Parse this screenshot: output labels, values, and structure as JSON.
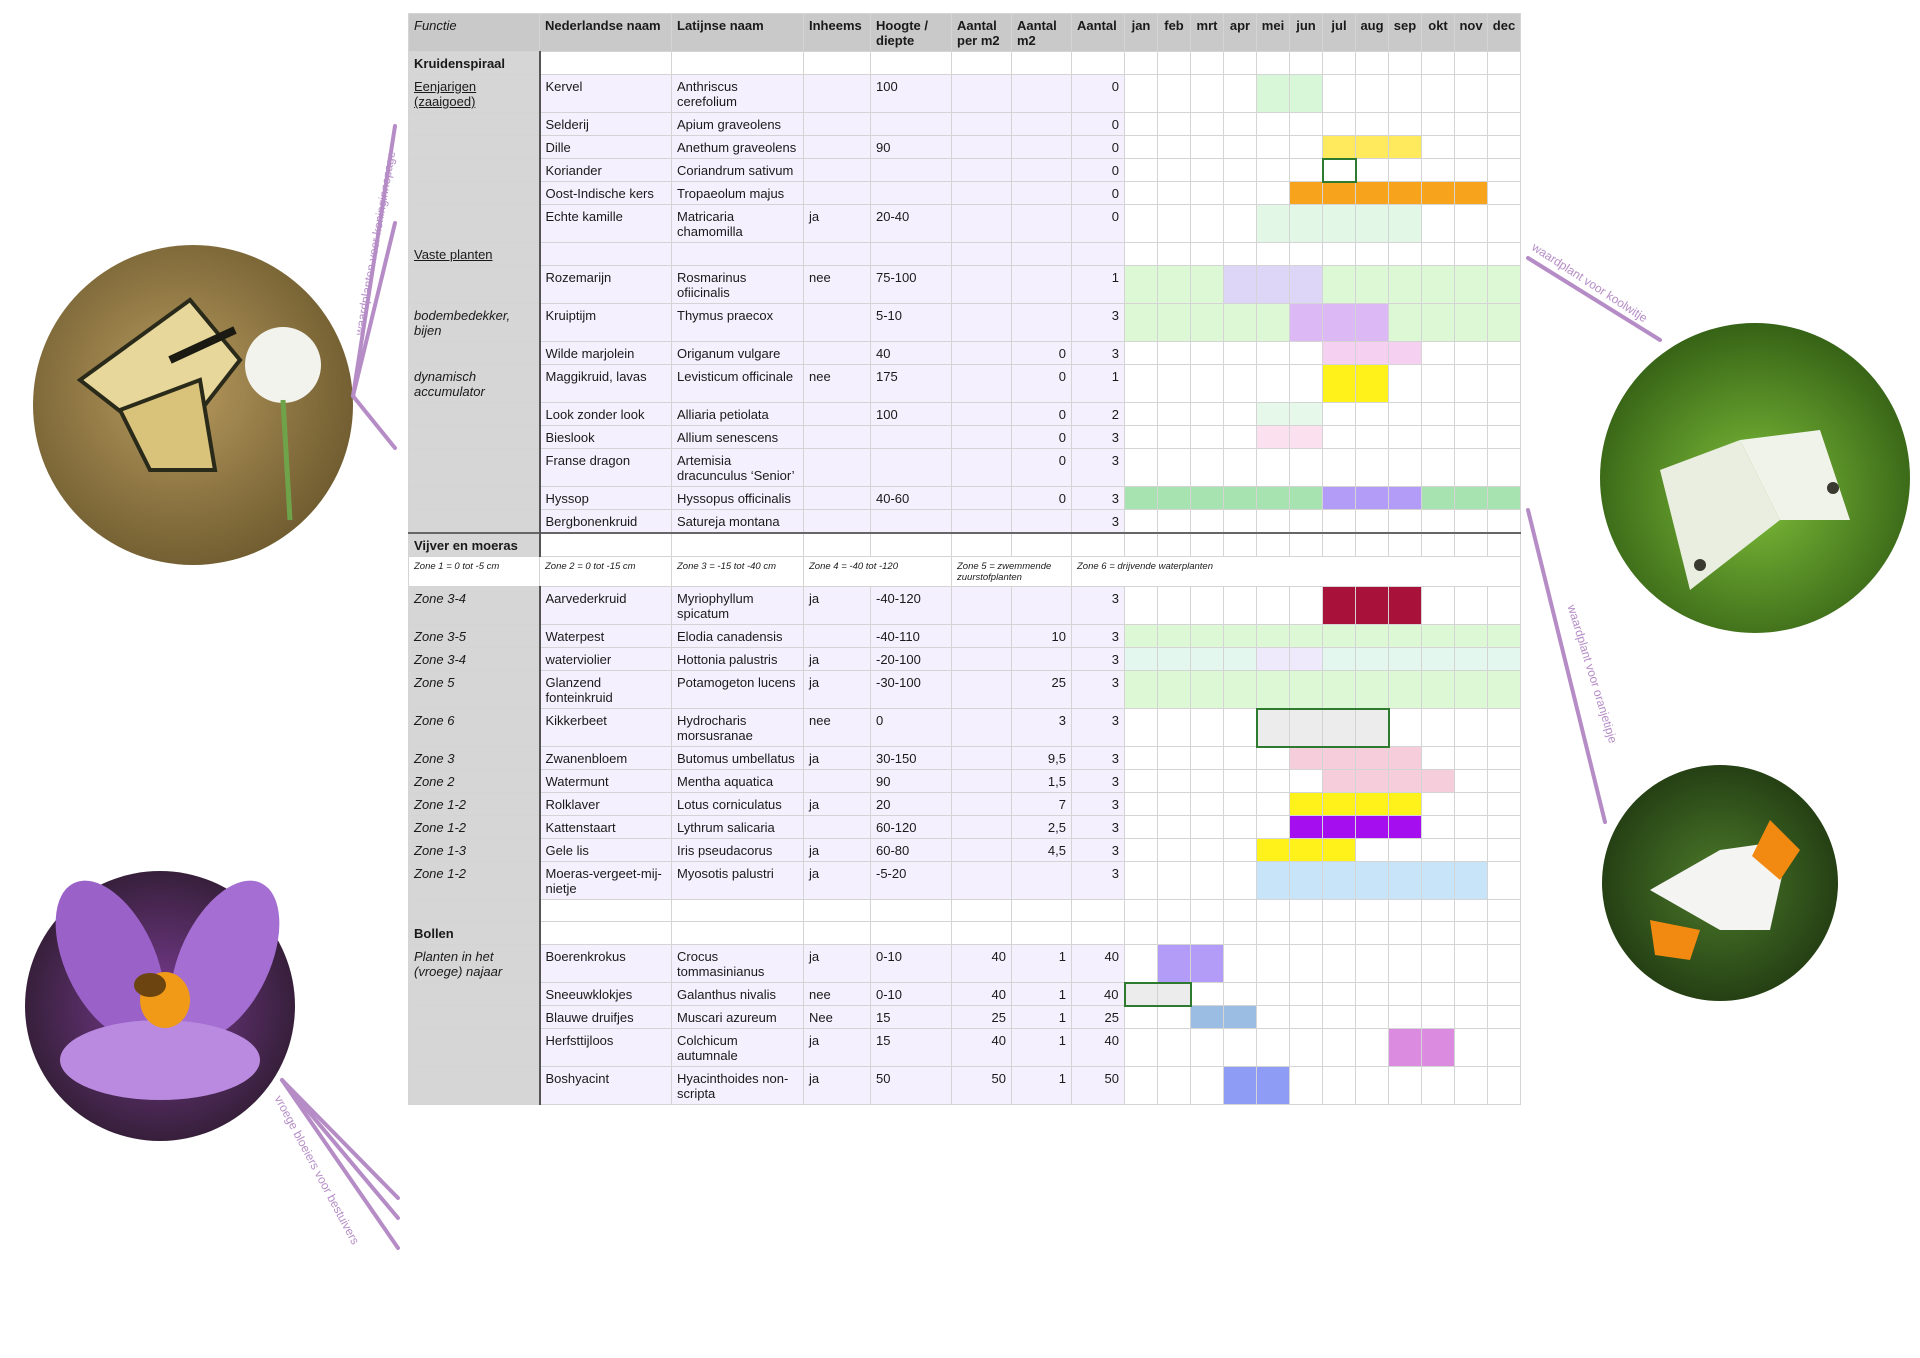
{
  "header": {
    "functie": "Functie",
    "ned": "Nederlandse naam",
    "lat": "Latijnse naam",
    "inheems": "Inheems",
    "hoogte": "Hoogte / diepte",
    "per_m2": "Aantal per m2",
    "m2": "Aantal m2",
    "aantal": "Aantal",
    "months": [
      "jan",
      "feb",
      "mrt",
      "apr",
      "mei",
      "jun",
      "jul",
      "aug",
      "sep",
      "okt",
      "nov",
      "dec"
    ]
  },
  "rows": [
    {
      "kind": "section",
      "c0": "Kruidenspiraal"
    },
    {
      "c0": "Eenjarigen (zaaigoed)",
      "c0s": "u",
      "ned": "Kervel",
      "lat": "Anthriscus cerefolium",
      "inh": "",
      "h": "100",
      "pm": "",
      "m2": "",
      "n": "0",
      "p": [
        [
          5,
          6,
          "#d8f6d8"
        ]
      ]
    },
    {
      "c0": "",
      "ned": "Selderij",
      "lat": "Apium graveolens",
      "inh": "",
      "h": "",
      "pm": "",
      "m2": "",
      "n": "0",
      "p": []
    },
    {
      "c0": "",
      "ned": "Dille",
      "lat": "Anethum graveolens",
      "inh": "",
      "h": "90",
      "pm": "",
      "m2": "",
      "n": "0",
      "p": [
        [
          7,
          9,
          "#ffe95c"
        ]
      ]
    },
    {
      "c0": "",
      "ned": "Koriander",
      "lat": "Coriandrum sativum",
      "inh": "",
      "h": "",
      "pm": "",
      "m2": "",
      "n": "0",
      "p": [],
      "o": [
        [
          7,
          7
        ]
      ]
    },
    {
      "c0": "",
      "ned": "Oost-Indische kers",
      "lat": "Tropaeolum majus",
      "inh": "",
      "h": "",
      "pm": "",
      "m2": "",
      "n": "0",
      "p": [
        [
          6,
          11,
          "#f7a31c"
        ]
      ]
    },
    {
      "c0": "",
      "ned": "Echte kamille",
      "lat": "Matricaria chamomilla",
      "inh": "ja",
      "h": "20-40",
      "pm": "",
      "m2": "",
      "n": "0",
      "p": [
        [
          5,
          9,
          "#e3f7e6"
        ]
      ]
    },
    {
      "c0": "Vaste planten",
      "c0s": "u",
      "ned": "",
      "lat": "",
      "inh": "",
      "h": "",
      "pm": "",
      "m2": "",
      "n": "",
      "p": []
    },
    {
      "c0": "",
      "ned": "Rozemarijn",
      "lat": "Rosmarinus ofiicinalis",
      "inh": "nee",
      "h": "75-100",
      "pm": "",
      "m2": "",
      "n": "1",
      "p": [
        [
          1,
          3,
          "#dcf8d4"
        ],
        [
          4,
          5,
          "#ddd6f7"
        ],
        [
          6,
          6,
          "#ddd6f7"
        ],
        [
          7,
          12,
          "#dcf8d4"
        ]
      ]
    },
    {
      "c0": "bodembedekker, bijen",
      "c0s": "i",
      "ned": "Kruiptijm",
      "lat": "Thymus praecox",
      "inh": "",
      "h": "5-10",
      "pm": "",
      "m2": "",
      "n": "3",
      "p": [
        [
          1,
          5,
          "#dcf8d4"
        ],
        [
          6,
          8,
          "#dcb8f5"
        ],
        [
          9,
          12,
          "#dcf8d4"
        ]
      ]
    },
    {
      "c0": "",
      "ned": "Wilde marjolein",
      "lat": "Origanum vulgare",
      "inh": "",
      "h": "40",
      "pm": "",
      "m2": "0",
      "n": "3",
      "p": [
        [
          7,
          9,
          "#f6d0f0"
        ]
      ]
    },
    {
      "c0": "dynamisch accumulator",
      "c0s": "i",
      "ned": "Maggikruid, lavas",
      "lat": "Levisticum officinale",
      "inh": "nee",
      "h": "175",
      "pm": "",
      "m2": "0",
      "n": "1",
      "p": [
        [
          7,
          8,
          "#fff21a"
        ]
      ]
    },
    {
      "c0": "",
      "ned": "Look zonder look",
      "lat": "Alliaria petiolata",
      "inh": "",
      "h": "100",
      "pm": "",
      "m2": "0",
      "n": "2",
      "p": [
        [
          5,
          6,
          "#e6f8ea"
        ]
      ]
    },
    {
      "c0": "",
      "ned": "Bieslook",
      "lat": "Allium senescens",
      "inh": "",
      "h": "",
      "pm": "",
      "m2": "0",
      "n": "3",
      "p": [
        [
          5,
          6,
          "#fbe0f0"
        ]
      ]
    },
    {
      "c0": "",
      "ned": "Franse dragon",
      "lat": "Artemisia dracunculus ‘Senior’",
      "inh": "",
      "h": "",
      "pm": "",
      "m2": "0",
      "n": "3",
      "p": []
    },
    {
      "c0": "",
      "ned": "Hyssop",
      "lat": "Hyssopus officinalis",
      "inh": "",
      "h": "40-60",
      "pm": "",
      "m2": "0",
      "n": "3",
      "p": [
        [
          1,
          6,
          "#a6e3b1"
        ],
        [
          7,
          9,
          "#b39cf7"
        ],
        [
          10,
          12,
          "#a6e3b1"
        ]
      ]
    },
    {
      "c0": "",
      "ned": "Bergbonenkruid",
      "lat": "Satureja montana",
      "inh": "",
      "h": "",
      "pm": "",
      "m2": "",
      "n": "3",
      "p": []
    },
    {
      "kind": "section",
      "c0": "Vijver en moeras",
      "topb": true
    },
    {
      "kind": "zone",
      "z": [
        "Zone 1 = 0 tot -5 cm",
        "Zone 2 = 0 tot -15 cm",
        "Zone 3 = -15 tot -40 cm",
        "Zone 4 = -40 tot -120",
        "Zone 5 = zwemmende zuurstofplanten",
        "Zone 6 = drijvende waterplanten"
      ]
    },
    {
      "c0": "Zone 3-4",
      "c0s": "i",
      "ned": "Aarvederkruid",
      "lat": "Myriophyllum spicatum",
      "inh": "ja",
      "h": "-40-120",
      "pm": "",
      "m2": "",
      "n": "3",
      "p": [
        [
          7,
          9,
          "#a8123a"
        ]
      ]
    },
    {
      "c0": "Zone 3-5",
      "c0s": "i",
      "ned": "Waterpest",
      "lat": "Elodia canadensis",
      "inh": "",
      "h": "-40-110",
      "pm": "",
      "m2": "10",
      "n": "3",
      "p": [
        [
          1,
          12,
          "#dcf8d4"
        ]
      ]
    },
    {
      "c0": "Zone 3-4",
      "c0s": "i",
      "ned": "waterviolier",
      "lat": "Hottonia palustris",
      "inh": "ja",
      "h": "-20-100",
      "pm": "",
      "m2": "",
      "n": "3",
      "p": [
        [
          1,
          4,
          "#e3f7ee"
        ],
        [
          5,
          6,
          "#eeeafc"
        ],
        [
          7,
          12,
          "#e3f7ee"
        ]
      ]
    },
    {
      "c0": "Zone 5",
      "c0s": "i",
      "ned": "Glanzend fonteinkruid",
      "lat": "Potamogeton lucens",
      "inh": "ja",
      "h": "-30-100",
      "pm": "",
      "m2": "25",
      "n": "3",
      "p": [
        [
          1,
          12,
          "#dcf8d4"
        ]
      ]
    },
    {
      "c0": "Zone 6",
      "c0s": "i",
      "ned": "Kikkerbeet",
      "lat": "Hydrocharis morsusranae",
      "inh": "nee",
      "h": "0",
      "pm": "",
      "m2": "3",
      "n": "3",
      "p": [
        [
          5,
          8,
          "#ececec"
        ]
      ],
      "o": [
        [
          5,
          8
        ]
      ]
    },
    {
      "c0": "Zone 3",
      "c0s": "i",
      "ned": "Zwanenbloem",
      "lat": "Butomus umbellatus",
      "inh": "ja",
      "h": "30-150",
      "pm": "",
      "m2": "9,5",
      "n": "3",
      "p": [
        [
          6,
          9,
          "#f6cedb"
        ]
      ]
    },
    {
      "c0": "Zone 2",
      "c0s": "i",
      "ned": "Watermunt",
      "lat": "Mentha aquatica",
      "inh": "",
      "h": "90",
      "pm": "",
      "m2": "1,5",
      "n": "3",
      "p": [
        [
          7,
          10,
          "#f6cedb"
        ]
      ]
    },
    {
      "c0": "Zone 1-2",
      "c0s": "i",
      "ned": "Rolklaver",
      "lat": "Lotus corniculatus",
      "inh": "ja",
      "h": "20",
      "pm": "",
      "m2": "7",
      "n": "3",
      "p": [
        [
          6,
          9,
          "#fff21a"
        ]
      ]
    },
    {
      "c0": "Zone 1-2",
      "c0s": "i",
      "ned": "Kattenstaart",
      "lat": "Lythrum salicaria",
      "inh": "",
      "h": "60-120",
      "pm": "",
      "m2": "2,5",
      "n": "3",
      "p": [
        [
          6,
          9,
          "#a50ff0"
        ]
      ]
    },
    {
      "c0": "Zone 1-3",
      "c0s": "i",
      "ned": "Gele lis",
      "lat": "Iris pseudacorus",
      "inh": "ja",
      "h": "60-80",
      "pm": "",
      "m2": "4,5",
      "n": "3",
      "p": [
        [
          5,
          7,
          "#fff21a"
        ]
      ]
    },
    {
      "c0": "Zone 1-2",
      "c0s": "i",
      "ned": "Moeras-vergeet-mij-nietje",
      "lat": "Myosotis palustri",
      "inh": "ja",
      "h": "-5-20",
      "pm": "",
      "m2": "",
      "n": "3",
      "p": [
        [
          5,
          11,
          "#c8e4f8"
        ]
      ]
    },
    {
      "kind": "gap"
    },
    {
      "kind": "section",
      "c0": "Bollen"
    },
    {
      "c0": "Planten in het (vroege) najaar",
      "c0s": "i",
      "ned": "Boerenkrokus",
      "lat": "Crocus tommasinianus",
      "inh": "ja",
      "h": "0-10",
      "pm": "40",
      "m2": "1",
      "n": "40",
      "p": [
        [
          2,
          3,
          "#b39cf7"
        ]
      ]
    },
    {
      "c0": "",
      "ned": "Sneeuwklokjes",
      "lat": "Galanthus nivalis",
      "inh": "nee",
      "h": "0-10",
      "pm": "40",
      "m2": "1",
      "n": "40",
      "p": [
        [
          1,
          2,
          "#ececec"
        ]
      ],
      "o": [
        [
          1,
          2
        ]
      ]
    },
    {
      "c0": "",
      "ned": "Blauwe druifjes",
      "lat": "Muscari azureum",
      "inh": "Nee",
      "h": "15",
      "pm": "25",
      "m2": "1",
      "n": "25",
      "p": [
        [
          3,
          4,
          "#9bbde4"
        ]
      ]
    },
    {
      "c0": "",
      "ned": "Herfsttijloos",
      "lat": "Colchicum autumnale",
      "inh": "ja",
      "h": "15",
      "pm": "40",
      "m2": "1",
      "n": "40",
      "p": [
        [
          9,
          10,
          "#dc8ce0"
        ]
      ]
    },
    {
      "c0": "",
      "ned": "Boshyacint",
      "lat": "Hyacinthoides non-scripta",
      "inh": "ja",
      "h": "50",
      "pm": "50",
      "m2": "1",
      "n": "50",
      "p": [
        [
          4,
          5,
          "#8f9cf5"
        ]
      ]
    }
  ],
  "annotations": {
    "koninginnepage": "waardplanten voor koninginnepage",
    "koolwitje": "waardplant voor koolwitje",
    "oranjetipje": "waardplant voor oranjetipje",
    "bestuivers": "vroege bloeiers voor bestuivers"
  },
  "colors": {
    "annotation": "#b58cc6",
    "header": "#c9c9c9",
    "function_col": "#d6d6d6",
    "lavender": "#f4f0fd"
  }
}
